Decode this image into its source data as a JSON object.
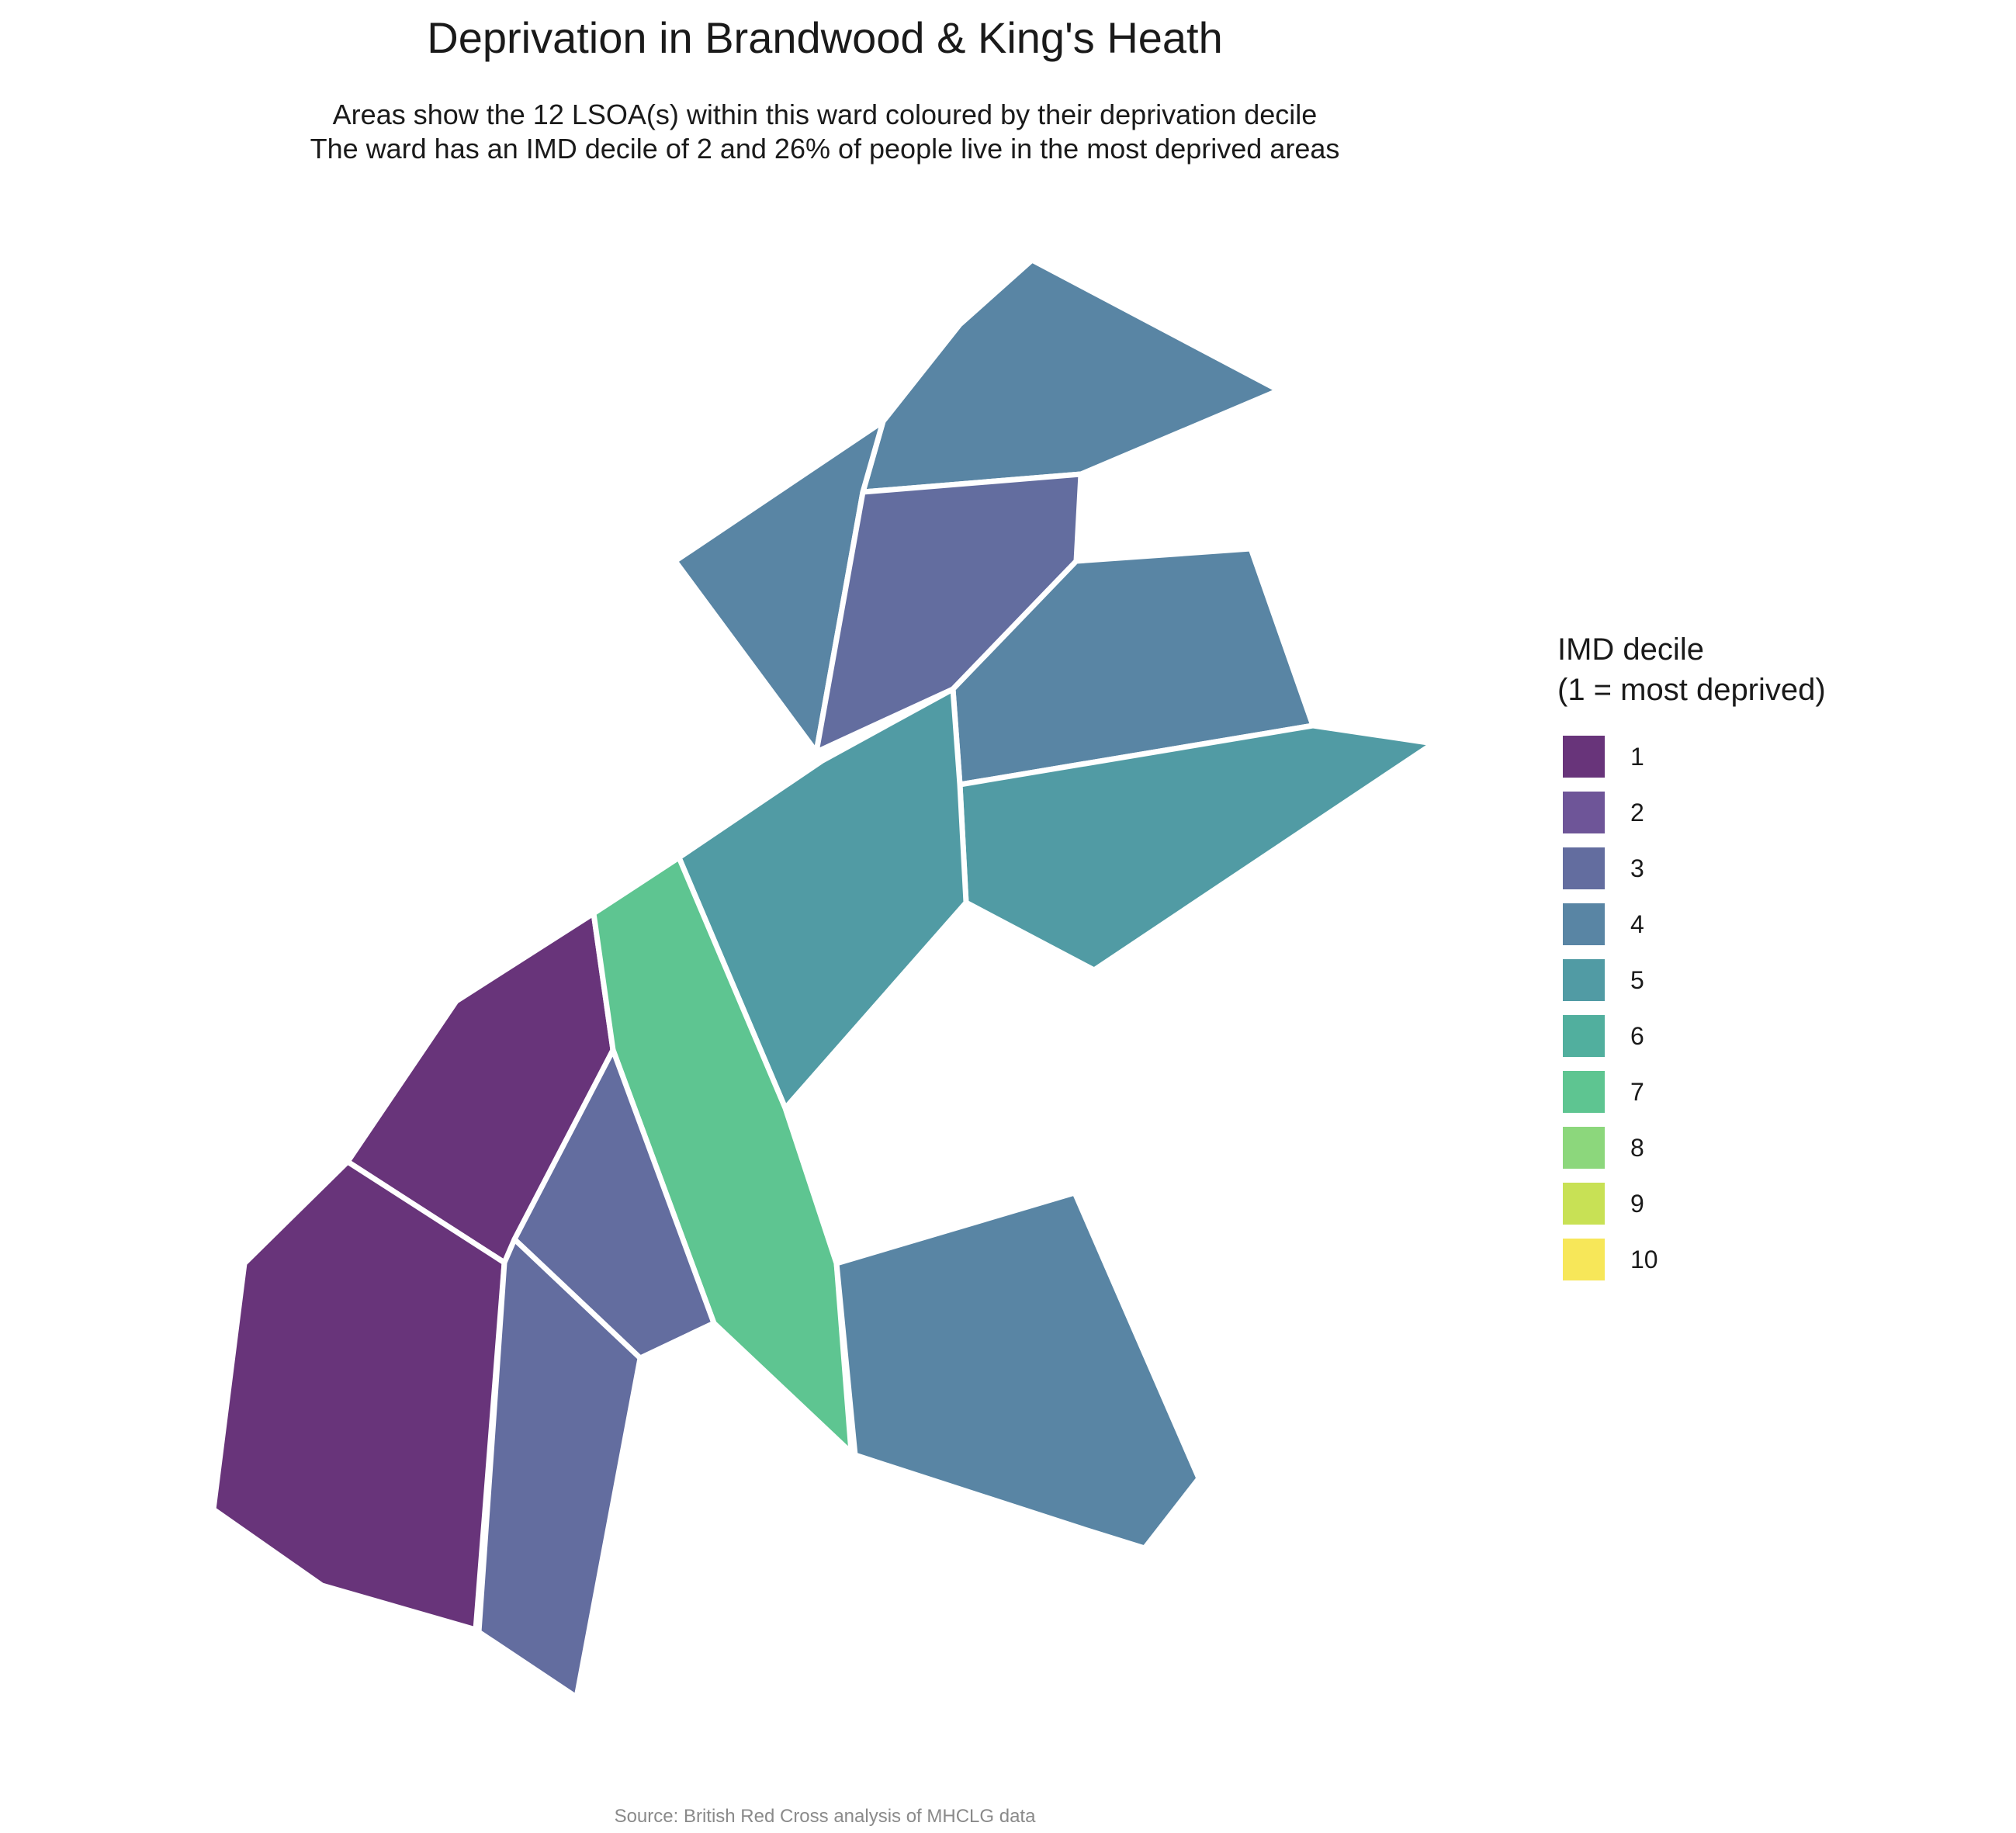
{
  "title": "Deprivation in Brandwood & King's Heath",
  "subtitle_line1": "Areas show the 12 LSOA(s) within this ward coloured by their deprivation decile",
  "subtitle_line2": "The ward has an IMD decile of 2 and 26% of people live in the most deprived areas",
  "caption": "Source: British Red Cross analysis of MHCLG data",
  "legend": {
    "title_line1": "IMD decile",
    "title_line2": "(1 = most deprived)",
    "items": [
      {
        "label": "1",
        "color": "#68347A"
      },
      {
        "label": "2",
        "color": "#6E5598"
      },
      {
        "label": "3",
        "color": "#636D9F"
      },
      {
        "label": "4",
        "color": "#5985A4"
      },
      {
        "label": "5",
        "color": "#519BA4"
      },
      {
        "label": "6",
        "color": "#51AF9E"
      },
      {
        "label": "7",
        "color": "#5EC591"
      },
      {
        "label": "8",
        "color": "#8CD77C"
      },
      {
        "label": "9",
        "color": "#C8E155"
      },
      {
        "label": "10",
        "color": "#F7E759"
      }
    ]
  },
  "chart_data": {
    "type": "choropleth",
    "title": "Deprivation in Brandwood & King's Heath",
    "legend_title": "IMD decile (1 = most deprived)",
    "legend_placement": "right",
    "ward_imd_decile": 2,
    "percent_in_most_deprived_areas": 26,
    "lsoa_count": 12,
    "lsoa_deciles": [
      4,
      4,
      3,
      4,
      5,
      5,
      1,
      7,
      3,
      1,
      3,
      4
    ]
  }
}
